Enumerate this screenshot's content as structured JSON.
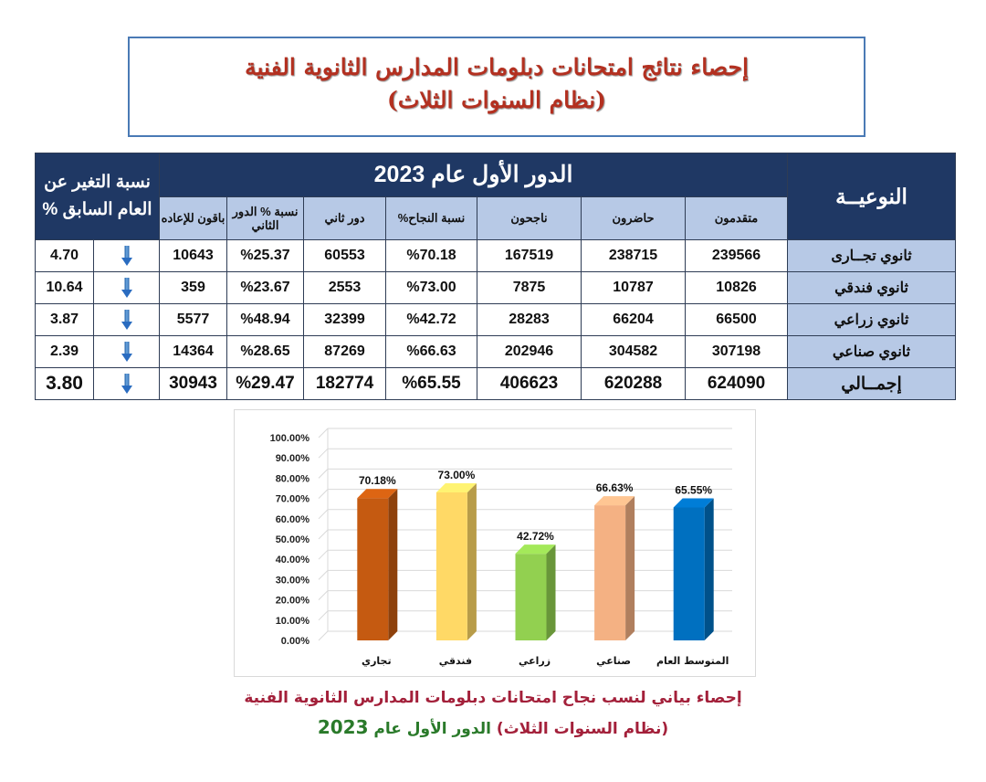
{
  "header": {
    "title_line1": "إحصاء نتائج امتحانات دبلومات المدارس الثانوية الفنية",
    "title_line2": "(نظام السنوات الثلاث)"
  },
  "table": {
    "category_header": "النوعيــة",
    "round_header": "الدور الأول عام 2023",
    "change_header": "نسبة التغير عن العام السابق %",
    "columns": [
      "متقدمون",
      "حاضرون",
      "ناجحون",
      "نسبة النجاح%",
      "دور ثاني",
      "نسبة % الدور الثاني",
      "باقون للإعاده"
    ],
    "rows": [
      {
        "category": "ثانوي تجــارى",
        "values": [
          "239566",
          "238715",
          "167519",
          "%70.18",
          "60553",
          "%25.37",
          "10643"
        ],
        "change": "4.70",
        "trend": "down"
      },
      {
        "category": "ثانوي فندقي",
        "values": [
          "10826",
          "10787",
          "7875",
          "%73.00",
          "2553",
          "%23.67",
          "359"
        ],
        "change": "10.64",
        "trend": "down"
      },
      {
        "category": "ثانوي زراعي",
        "values": [
          "66500",
          "66204",
          "28283",
          "%42.72",
          "32399",
          "%48.94",
          "5577"
        ],
        "change": "3.87",
        "trend": "down"
      },
      {
        "category": "ثانوي صناعي",
        "values": [
          "307198",
          "304582",
          "202946",
          "%66.63",
          "87269",
          "%28.65",
          "14364"
        ],
        "change": "2.39",
        "trend": "down"
      }
    ],
    "total": {
      "category": "إجمــالي",
      "values": [
        "624090",
        "620288",
        "406623",
        "%65.55",
        "182774",
        "%29.47",
        "30943"
      ],
      "change": "3.80",
      "trend": "down"
    }
  },
  "chart_data": {
    "type": "bar",
    "categories": [
      "تجاري",
      "فندقي",
      "زراعي",
      "صناعي",
      "المتوسط العام"
    ],
    "values": [
      70.18,
      73.0,
      42.72,
      66.63,
      65.55
    ],
    "value_labels": [
      "70.18%",
      "73.00%",
      "42.72%",
      "66.63%",
      "65.55%"
    ],
    "colors": [
      "#c55a11",
      "#ffd966",
      "#92d050",
      "#f4b183",
      "#0070c0"
    ],
    "ylim": [
      0,
      100
    ],
    "yticks": [
      "0.00%",
      "10.00%",
      "20.00%",
      "30.00%",
      "40.00%",
      "50.00%",
      "60.00%",
      "70.00%",
      "80.00%",
      "90.00%",
      "100.00%"
    ],
    "grid": true,
    "style": "3d-column"
  },
  "caption": {
    "line1": "إحصاء بياني لنسب نجاح امتحانات دبلومات المدارس الثانوية الفنية",
    "line2_a": "(نظام السنوات الثلاث)",
    "line2_b": "الدور الأول عام",
    "line2_year": "2023"
  }
}
